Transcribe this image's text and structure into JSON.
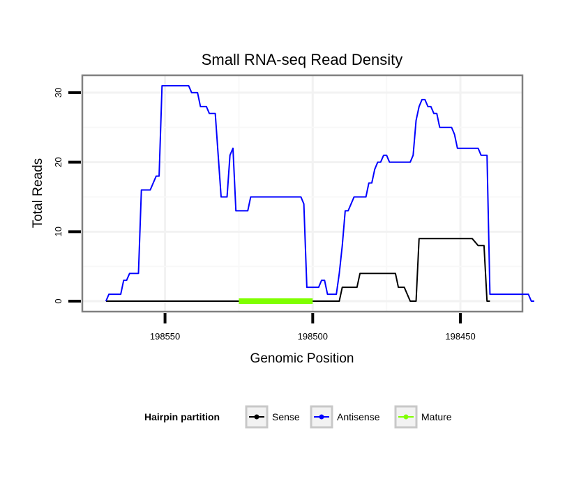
{
  "chart_data": {
    "type": "line",
    "title": "Small RNA-seq Read Density",
    "xlabel": "Genomic Position",
    "ylabel": "Total Reads",
    "xlim": [
      198578,
      198429
    ],
    "ylim": [
      -1.5,
      32.5
    ],
    "x_reversed": true,
    "x_ticks": [
      198550,
      198500,
      198450
    ],
    "x_tick_labels": [
      "198550",
      "198500",
      "198450"
    ],
    "y_ticks": [
      0,
      10,
      20,
      30
    ],
    "y_tick_labels": [
      "0",
      "10",
      "20",
      "30"
    ],
    "grid": true,
    "legend": {
      "title": "Hairpin partition",
      "position": "bottom",
      "entries": [
        {
          "label": "Sense",
          "color": "#000000"
        },
        {
          "label": "Antisense",
          "color": "#0000ff"
        },
        {
          "label": "Mature",
          "color": "#7fff00"
        }
      ]
    },
    "series": [
      {
        "name": "Sense",
        "color": "#000000",
        "points": [
          [
            198570,
            0
          ],
          [
            198491,
            0
          ],
          [
            198490,
            2
          ],
          [
            198485,
            2
          ],
          [
            198484,
            4
          ],
          [
            198472,
            4
          ],
          [
            198471,
            2
          ],
          [
            198469,
            2
          ],
          [
            198467,
            0
          ],
          [
            198465,
            0
          ],
          [
            198464,
            9
          ],
          [
            198446,
            9
          ],
          [
            198444,
            8
          ],
          [
            198442,
            8
          ],
          [
            198441,
            0
          ],
          [
            198440,
            0
          ]
        ]
      },
      {
        "name": "Antisense",
        "color": "#0000ff",
        "points": [
          [
            198570,
            0
          ],
          [
            198569,
            1
          ],
          [
            198565,
            1
          ],
          [
            198564,
            3
          ],
          [
            198563,
            3
          ],
          [
            198562,
            4
          ],
          [
            198559,
            4
          ],
          [
            198558,
            16
          ],
          [
            198555,
            16
          ],
          [
            198553,
            18
          ],
          [
            198552,
            18
          ],
          [
            198551,
            31
          ],
          [
            198542,
            31
          ],
          [
            198541,
            30
          ],
          [
            198539,
            30
          ],
          [
            198538,
            28
          ],
          [
            198536,
            28
          ],
          [
            198535,
            27
          ],
          [
            198533,
            27
          ],
          [
            198532,
            21
          ],
          [
            198531,
            15
          ],
          [
            198529,
            15
          ],
          [
            198528,
            21
          ],
          [
            198527,
            22
          ],
          [
            198526,
            13
          ],
          [
            198522,
            13
          ],
          [
            198521,
            15
          ],
          [
            198504,
            15
          ],
          [
            198503,
            14
          ],
          [
            198502,
            2
          ],
          [
            198498,
            2
          ],
          [
            198497,
            3
          ],
          [
            198496,
            3
          ],
          [
            198495,
            1
          ],
          [
            198492,
            1
          ],
          [
            198491,
            4
          ],
          [
            198490,
            8
          ],
          [
            198489,
            13
          ],
          [
            198488,
            13
          ],
          [
            198486,
            15
          ],
          [
            198482,
            15
          ],
          [
            198481,
            17
          ],
          [
            198480,
            17
          ],
          [
            198479,
            19
          ],
          [
            198478,
            20
          ],
          [
            198477,
            20
          ],
          [
            198476,
            21
          ],
          [
            198475,
            21
          ],
          [
            198474,
            20
          ],
          [
            198467,
            20
          ],
          [
            198466,
            21
          ],
          [
            198465,
            26
          ],
          [
            198464,
            28
          ],
          [
            198463,
            29
          ],
          [
            198462,
            29
          ],
          [
            198461,
            28
          ],
          [
            198460,
            28
          ],
          [
            198459,
            27
          ],
          [
            198458,
            27
          ],
          [
            198457,
            25
          ],
          [
            198453,
            25
          ],
          [
            198452,
            24
          ],
          [
            198451,
            22
          ],
          [
            198444,
            22
          ],
          [
            198443,
            21
          ],
          [
            198441,
            21
          ],
          [
            198440,
            1
          ],
          [
            198427,
            1
          ],
          [
            198426,
            0
          ],
          [
            198425,
            0
          ]
        ]
      },
      {
        "name": "Mature",
        "color": "#7fff00",
        "points": [
          [
            198525,
            0
          ],
          [
            198500,
            0
          ]
        ]
      }
    ]
  }
}
